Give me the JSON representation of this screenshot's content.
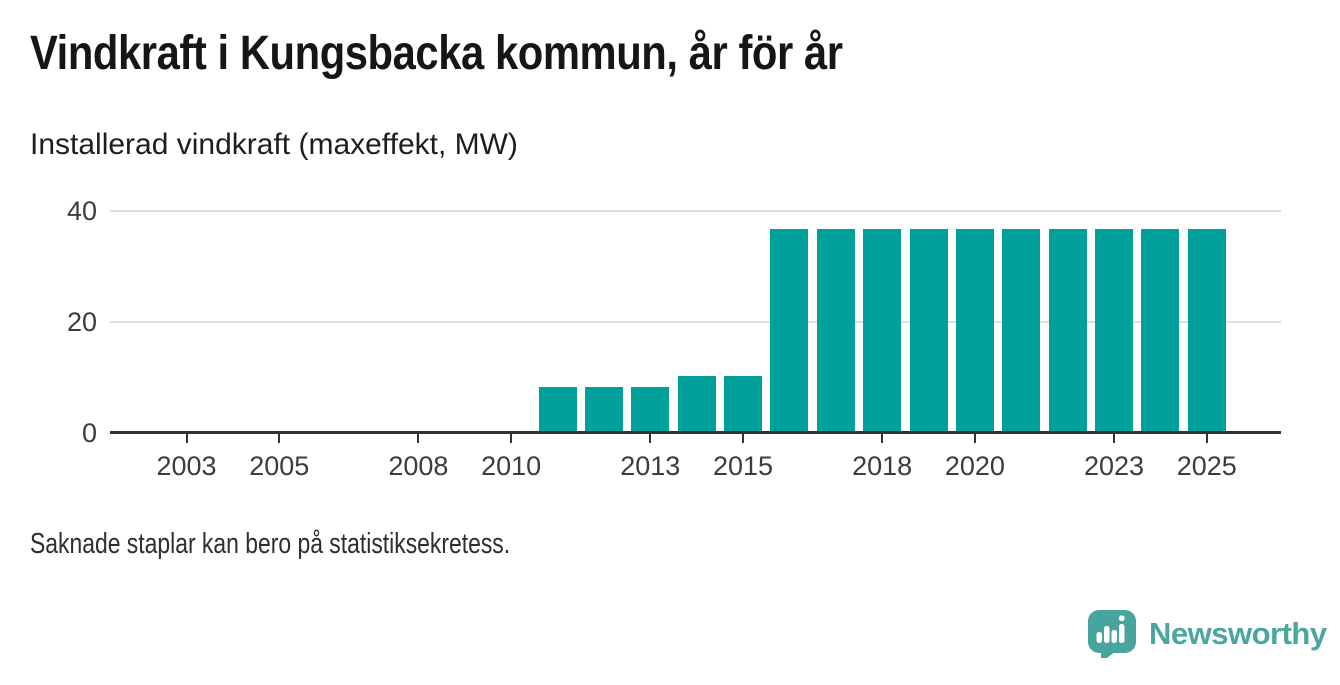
{
  "header": {
    "title": "Vindkraft i Kungsbacka kommun, år för år",
    "subtitle": "Installerad vindkraft (maxeffekt, MW)"
  },
  "footer": {
    "note": "Saknade staplar kan bero på statistiksekretess.",
    "logo_text": "Newsworthy"
  },
  "colors": {
    "bar": "#00a19a",
    "axis": "#333333",
    "gridline": "#dedede",
    "tick_label": "#3c3c3c",
    "logo_icon": "#47a49e",
    "logo_text": "#4ca6a0"
  },
  "chart_data": {
    "type": "bar",
    "title": "Vindkraft i Kungsbacka kommun, år för år",
    "subtitle": "Installerad vindkraft (maxeffekt, MW)",
    "note": "Saknade staplar kan bero på statistiksekretess.",
    "unit": "MW",
    "ylabel": "Installerad vindkraft (maxeffekt, MW)",
    "xlabel": "",
    "x": [
      2011,
      2012,
      2013,
      2014,
      2015,
      2016,
      2017,
      2018,
      2019,
      2020,
      2021,
      2022,
      2023,
      2024,
      2025
    ],
    "values": [
      8.2,
      8.2,
      8.2,
      10.2,
      10.2,
      36.6,
      36.6,
      36.6,
      36.6,
      36.6,
      36.6,
      36.6,
      36.6,
      36.6,
      36.6
    ],
    "xticks": [
      2003,
      2005,
      2008,
      2010,
      2013,
      2015,
      2018,
      2020,
      2023,
      2025
    ],
    "yticks": [
      0,
      20,
      40
    ],
    "xlim": [
      2001.35,
      2026.6
    ],
    "ylim": [
      0,
      41
    ],
    "grid": "horizontal",
    "legend": "none",
    "bar_color": "#00a19a"
  }
}
